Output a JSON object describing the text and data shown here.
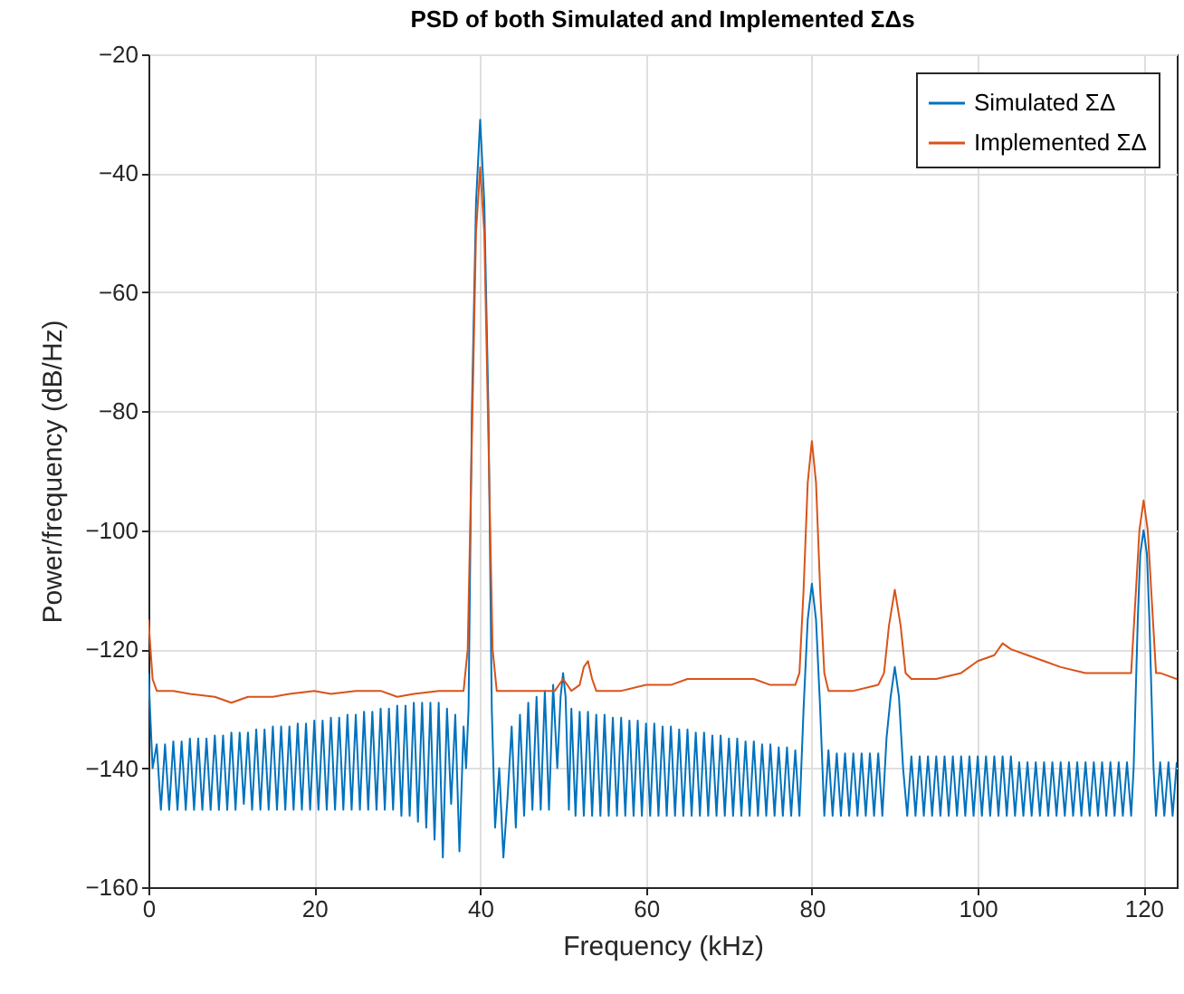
{
  "chart_data": {
    "type": "line",
    "title": "PSD of both Simulated and Implemented ΣΔs",
    "xlabel": "Frequency (kHz)",
    "ylabel": "Power/frequency (dB/Hz)",
    "xlim": [
      0,
      124
    ],
    "xticks": [
      0,
      20,
      40,
      60,
      80,
      100,
      120
    ],
    "ylim": [
      -160,
      -20
    ],
    "yticks": [
      -160,
      -140,
      -120,
      -100,
      -80,
      -60,
      -40,
      -20
    ],
    "grid": true,
    "legend": "top right",
    "series": [
      {
        "name": "Simulated ΣΔ",
        "color": "#0072bd",
        "x": [
          0,
          0.5,
          1,
          1.5,
          2,
          2.5,
          3,
          3.5,
          4,
          4.5,
          5,
          5.5,
          6,
          6.5,
          7,
          7.5,
          8,
          8.5,
          9,
          9.5,
          10,
          10.5,
          11,
          11.5,
          12,
          12.5,
          13,
          13.5,
          14,
          14.5,
          15,
          15.5,
          16,
          16.5,
          17,
          17.5,
          18,
          18.5,
          19,
          19.5,
          20,
          20.5,
          21,
          21.5,
          22,
          22.5,
          23,
          23.5,
          24,
          24.5,
          25,
          25.5,
          26,
          26.5,
          27,
          27.5,
          28,
          28.5,
          29,
          29.5,
          30,
          30.5,
          31,
          31.5,
          32,
          32.5,
          33,
          33.5,
          34,
          34.5,
          35,
          35.5,
          36,
          36.5,
          37,
          37.5,
          38,
          38.3,
          38.6,
          39,
          39.5,
          40,
          40.5,
          41,
          41.4,
          41.8,
          42.3,
          42.8,
          43.3,
          43.8,
          44.3,
          44.8,
          45.3,
          45.8,
          46.3,
          46.8,
          47.3,
          47.8,
          48.3,
          48.8,
          49.3,
          49.7,
          50,
          50.3,
          50.7,
          51,
          51.5,
          52,
          52.5,
          53,
          53.5,
          54,
          54.5,
          55,
          55.5,
          56,
          56.5,
          57,
          57.5,
          58,
          58.5,
          59,
          59.5,
          60,
          60.5,
          61,
          61.5,
          62,
          62.5,
          63,
          63.5,
          64,
          64.5,
          65,
          65.5,
          66,
          66.5,
          67,
          67.5,
          68,
          68.5,
          69,
          69.5,
          70,
          70.5,
          71,
          71.5,
          72,
          72.5,
          73,
          73.5,
          74,
          74.5,
          75,
          75.5,
          76,
          76.5,
          77,
          77.5,
          78,
          78.5,
          79,
          79.5,
          80,
          80.5,
          81,
          81.5,
          82,
          82.5,
          83,
          83.5,
          84,
          84.5,
          85,
          85.5,
          86,
          86.5,
          87,
          87.5,
          88,
          88.5,
          89,
          89.5,
          90,
          90.5,
          91,
          91.5,
          92,
          92.5,
          93,
          93.5,
          94,
          94.5,
          95,
          95.5,
          96,
          96.5,
          97,
          97.5,
          98,
          98.5,
          99,
          99.5,
          100,
          100.5,
          101,
          101.5,
          102,
          102.5,
          103,
          103.5,
          104,
          104.5,
          105,
          105.5,
          106,
          106.5,
          107,
          107.5,
          108,
          108.5,
          109,
          109.5,
          110,
          110.5,
          111,
          111.5,
          112,
          112.5,
          113,
          113.5,
          114,
          114.5,
          115,
          115.5,
          116,
          116.5,
          117,
          117.5,
          118,
          118.5,
          118.8,
          119.3,
          119.6,
          120,
          120.4,
          120.7,
          121.2,
          121.5,
          122,
          122.5,
          123,
          123.5,
          124
        ],
        "values": [
          -124,
          -140,
          -136,
          -147,
          -136,
          -147,
          -135.5,
          -147,
          -135.5,
          -147,
          -135,
          -147,
          -135,
          -147,
          -135,
          -147,
          -134.5,
          -147,
          -134.5,
          -147,
          -134,
          -147,
          -134,
          -146,
          -134,
          -147,
          -133.5,
          -147,
          -133.5,
          -147,
          -133,
          -147,
          -133,
          -147,
          -133,
          -147,
          -132.5,
          -147,
          -132.5,
          -147,
          -132,
          -147,
          -132,
          -147,
          -131.5,
          -147,
          -131.5,
          -147,
          -131,
          -147,
          -131,
          -147,
          -130.5,
          -147,
          -130.5,
          -147,
          -130,
          -147,
          -130,
          -147,
          -129.5,
          -148,
          -129.5,
          -148,
          -129,
          -149,
          -129,
          -150,
          -129,
          -152,
          -129,
          -155,
          -130,
          -146,
          -131,
          -154,
          -133,
          -140,
          -130,
          -80,
          -45,
          -31,
          -45,
          -80,
          -130,
          -150,
          -140,
          -155,
          -145,
          -133,
          -150,
          -131,
          -148,
          -129,
          -147,
          -128,
          -147,
          -127,
          -147,
          -126,
          -140,
          -128,
          -124,
          -128,
          -147,
          -130,
          -148,
          -130.5,
          -148,
          -130.5,
          -148,
          -131,
          -148,
          -131,
          -148,
          -131.5,
          -148,
          -131.5,
          -148,
          -132,
          -148,
          -132,
          -148,
          -132.5,
          -148,
          -132.5,
          -148,
          -133,
          -148,
          -133,
          -148,
          -133.5,
          -148,
          -133.5,
          -148,
          -134,
          -148,
          -134,
          -148,
          -134.5,
          -148,
          -134.5,
          -148,
          -135,
          -148,
          -135,
          -148,
          -135.5,
          -148,
          -135.5,
          -148,
          -136,
          -148,
          -136,
          -148,
          -136.5,
          -148,
          -136.5,
          -148,
          -137,
          -148,
          -130,
          -115,
          -109,
          -115,
          -130,
          -148,
          -137,
          -148,
          -137.5,
          -148,
          -137.5,
          -148,
          -137.5,
          -148,
          -137.5,
          -148,
          -137.5,
          -148,
          -137.5,
          -148,
          -135,
          -128,
          -123,
          -128,
          -140,
          -148,
          -138,
          -148,
          -138,
          -148,
          -138,
          -148,
          -138,
          -148,
          -138,
          -148,
          -138,
          -148,
          -138,
          -148,
          -138,
          -148,
          -138,
          -148,
          -138,
          -148,
          -138,
          -148,
          -138,
          -148,
          -138,
          -148,
          -139,
          -148,
          -139,
          -148,
          -139,
          -148,
          -139,
          -148,
          -139,
          -148,
          -139,
          -148,
          -139,
          -148,
          -139,
          -148,
          -139,
          -148,
          -139,
          -148,
          -139,
          -148,
          -139,
          -148,
          -139,
          -148,
          -139,
          -148,
          -140,
          -115,
          -104,
          -100,
          -104,
          -115,
          -140,
          -148,
          -139,
          -148,
          -139,
          -148,
          -139
        ]
      },
      {
        "name": "Implemented ΣΔ",
        "color": "#d95319",
        "x": [
          0,
          0.5,
          1,
          3,
          5,
          8,
          10,
          12,
          15,
          17,
          20,
          22,
          25,
          28,
          30,
          32,
          35,
          37,
          38,
          38.5,
          39,
          39.5,
          40,
          40.5,
          41,
          41.5,
          42,
          45,
          48,
          49,
          50,
          51,
          52,
          52.5,
          53,
          53.5,
          54,
          57,
          60,
          63,
          65,
          68,
          70,
          73,
          75,
          78,
          78.5,
          79,
          79.5,
          80,
          80.5,
          81,
          81.5,
          82,
          85,
          88,
          88.7,
          89.3,
          90,
          90.7,
          91.3,
          92,
          95,
          98,
          100,
          102,
          103,
          104,
          106,
          108,
          110,
          113,
          115,
          118,
          118.5,
          119,
          119.5,
          120,
          120.5,
          121,
          121.5,
          122,
          124
        ],
        "values": [
          -115,
          -125,
          -127,
          -127,
          -127.5,
          -128,
          -129,
          -128,
          -128,
          -127.5,
          -127,
          -127.5,
          -127,
          -127,
          -128,
          -127.5,
          -127,
          -127,
          -127,
          -120,
          -85,
          -50,
          -39,
          -50,
          -85,
          -120,
          -127,
          -127,
          -127,
          -127,
          -125,
          -127,
          -126,
          -123,
          -122,
          -125,
          -127,
          -127,
          -126,
          -126,
          -125,
          -125,
          -125,
          -125,
          -126,
          -126,
          -124,
          -110,
          -92,
          -85,
          -92,
          -110,
          -124,
          -127,
          -127,
          -126,
          -124,
          -116,
          -110,
          -116,
          -124,
          -125,
          -125,
          -124,
          -122,
          -121,
          -119,
          -120,
          -121,
          -122,
          -123,
          -124,
          -124,
          -124,
          -124,
          -112,
          -100,
          -95,
          -100,
          -112,
          -124,
          -124,
          -125
        ]
      }
    ]
  }
}
